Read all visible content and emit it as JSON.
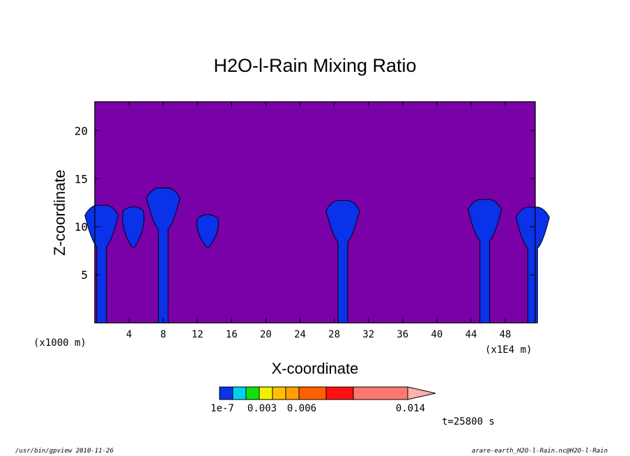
{
  "chart_data": {
    "type": "contour",
    "title": "H2O-l-Rain Mixing Ratio",
    "xlabel": "X-coordinate",
    "ylabel": "Z-coordinate",
    "x_unit_left": "(x1000 m)",
    "x_unit_right": "(x1E4 m)",
    "xlim": [
      0,
      51.5
    ],
    "ylim": [
      0,
      23
    ],
    "x_ticks": [
      4,
      8,
      12,
      16,
      20,
      24,
      28,
      32,
      36,
      40,
      44,
      48
    ],
    "y_ticks": [
      5,
      10,
      15,
      20
    ],
    "background_color": "#7a00a8",
    "colorbar": {
      "colors": [
        "#0a32e8",
        "#00d0f0",
        "#10e010",
        "#f0f000",
        "#ffc000",
        "#ffa000",
        "#ff6000",
        "#ff1010",
        "#ff7870",
        "#ffb0b0"
      ],
      "labels": [
        "1e-7",
        "0.003",
        "0.006",
        "0.014"
      ]
    },
    "features": [
      {
        "x_center": 0.8,
        "top": 12.2,
        "base": 0
      },
      {
        "x_center": 4.5,
        "top": 12.0,
        "base": 8.0
      },
      {
        "x_center": 8.0,
        "top": 14.0,
        "base": 0
      },
      {
        "x_center": 13.2,
        "top": 11.2,
        "base": 8.0
      },
      {
        "x_center": 29.0,
        "top": 12.7,
        "base": 0
      },
      {
        "x_center": 45.6,
        "top": 12.8,
        "base": 0
      },
      {
        "x_center": 51.2,
        "top": 12.0,
        "base": 0
      }
    ]
  },
  "time_label": "t=25800 s",
  "footer": {
    "left": "/usr/bin/gpview  2010-11-26",
    "right": "arare-earth_H2O-l-Rain.nc@H2O-l-Rain"
  }
}
